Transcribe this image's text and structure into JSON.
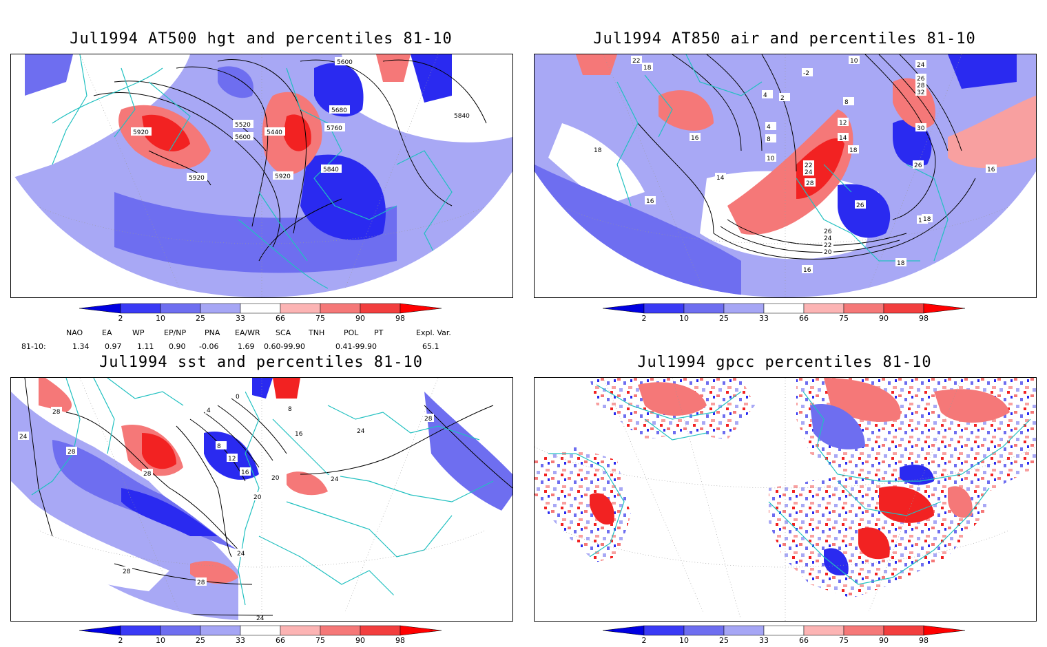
{
  "panels": [
    {
      "title": "Jul1994 AT500 hgt and percentiles 81-10",
      "contour_labels": [
        "5440",
        "5600",
        "5680",
        "5760",
        "5840",
        "5920",
        "5520",
        "5600",
        "5920",
        "5920",
        "5840"
      ]
    },
    {
      "title": "Jul1994 AT850 air and percentiles 81-10",
      "contour_labels": [
        "16",
        "18",
        "16",
        "14",
        "16",
        "10",
        "8",
        "4",
        "12",
        "14",
        "18",
        "16",
        "24",
        "22",
        "28",
        "26",
        "26",
        "18",
        "18",
        "26",
        "24",
        "22",
        "20",
        "16",
        "30",
        "32",
        "28",
        "26",
        "24",
        "2",
        "-2",
        "4",
        "8",
        "10",
        "18",
        "22"
      ]
    },
    {
      "title": "Jul1994 sst and percentiles 81-10",
      "contour_labels": [
        "28",
        "24",
        "28",
        "28",
        "8",
        "12",
        "16",
        "20",
        "20",
        "24",
        "24",
        "24",
        "28",
        "28",
        "24",
        "16",
        "28",
        "4",
        "0",
        "8"
      ]
    },
    {
      "title": "Jul1994 gpcc percentiles 81-10",
      "contour_labels": []
    }
  ],
  "colorbar": {
    "ticks": [
      "2",
      "10",
      "25",
      "33",
      "66",
      "75",
      "90",
      "98"
    ],
    "colors": [
      "#0000e0",
      "#3a3af5",
      "#6e6ef0",
      "#a6a6f5",
      "#ffffff",
      "#fcb4b4",
      "#f57878",
      "#f23e3e",
      "#ff0000"
    ]
  },
  "teleconnections": {
    "headers": [
      "NAO",
      "EA",
      "WP",
      "EP/NP",
      "PNA",
      "EA/WR",
      "SCA",
      "TNH",
      "POL",
      "PT",
      "Expl. Var."
    ],
    "row_label": "81-10:",
    "values": [
      "1.34",
      "0.97",
      "1.11",
      "0.90",
      "-0.06",
      "1.69",
      "0.60-99.90",
      "",
      "0.41-99.90",
      "",
      "65.1"
    ]
  },
  "colors": {
    "coast": "#20c0c0",
    "blue_dark": "#2222ee",
    "blue_mid": "#5a5af0",
    "blue_light": "#a8a8f5",
    "red_light": "#f8a0a0",
    "red_mid": "#f06060",
    "red_dark": "#f02020"
  }
}
